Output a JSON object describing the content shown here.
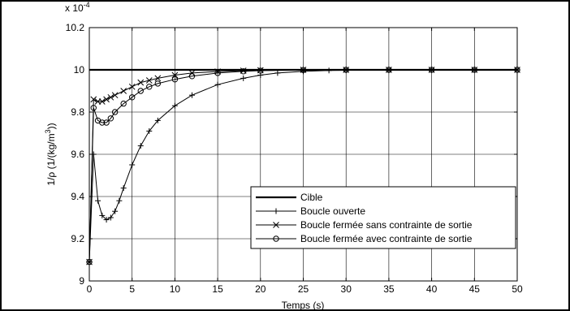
{
  "chart_data": {
    "type": "line",
    "title": "",
    "xlabel": "Temps (s)",
    "ylabel_main": "1/ρ (1/(kg/m",
    "ylabel_sup": "3",
    "ylabel_tail": "))",
    "scale_note": "x 10",
    "scale_exp": "-4",
    "xlim": [
      0,
      50
    ],
    "ylim": [
      9.0,
      10.2
    ],
    "xticks": [
      "0",
      "5",
      "10",
      "15",
      "20",
      "25",
      "30",
      "35",
      "40",
      "45",
      "50"
    ],
    "yticks": [
      "9",
      "9.2",
      "9.4",
      "9.6",
      "9.8",
      "10",
      "10.2"
    ],
    "grid": true,
    "legend_position": "bottom-right",
    "series": [
      {
        "name": "Cible",
        "marker": "none",
        "x": [
          0,
          50
        ],
        "y": [
          10.0,
          10.0
        ]
      },
      {
        "name": "Boucle ouverte",
        "marker": "plus",
        "x": [
          0,
          0.5,
          1,
          1.5,
          2,
          2.5,
          3,
          3.5,
          4,
          5,
          6,
          7,
          8,
          10,
          12,
          15,
          18,
          20,
          22,
          25,
          28,
          30,
          35,
          40,
          45,
          50
        ],
        "y": [
          9.09,
          9.6,
          9.38,
          9.31,
          9.29,
          9.3,
          9.33,
          9.38,
          9.44,
          9.55,
          9.64,
          9.71,
          9.76,
          9.83,
          9.88,
          9.93,
          9.96,
          9.975,
          9.985,
          9.993,
          9.997,
          9.998,
          9.999,
          10.0,
          10.0,
          10.0
        ]
      },
      {
        "name": "Boucle fermée sans contrainte de sortie",
        "marker": "x",
        "x": [
          0,
          0.5,
          1,
          1.5,
          2,
          2.5,
          3,
          4,
          5,
          6,
          7,
          8,
          10,
          12,
          15,
          18,
          20,
          25,
          30,
          35,
          40,
          45,
          50
        ],
        "y": [
          9.09,
          9.86,
          9.85,
          9.85,
          9.86,
          9.87,
          9.88,
          9.9,
          9.92,
          9.94,
          9.95,
          9.96,
          9.975,
          9.985,
          9.992,
          9.996,
          9.998,
          10.0,
          10.0,
          10.0,
          10.0,
          10.0,
          10.0
        ]
      },
      {
        "name": "Boucle fermée avec contrainte de sortie",
        "marker": "circle",
        "x": [
          0,
          0.5,
          1,
          1.5,
          2,
          2.5,
          3,
          4,
          5,
          6,
          7,
          8,
          10,
          12,
          15,
          18,
          20,
          25,
          30,
          35,
          40,
          45,
          50
        ],
        "y": [
          9.09,
          9.82,
          9.76,
          9.75,
          9.75,
          9.77,
          9.8,
          9.84,
          9.87,
          9.9,
          9.92,
          9.935,
          9.955,
          9.97,
          9.985,
          9.993,
          9.996,
          9.999,
          10.0,
          10.0,
          10.0,
          10.0,
          10.0
        ]
      }
    ]
  }
}
